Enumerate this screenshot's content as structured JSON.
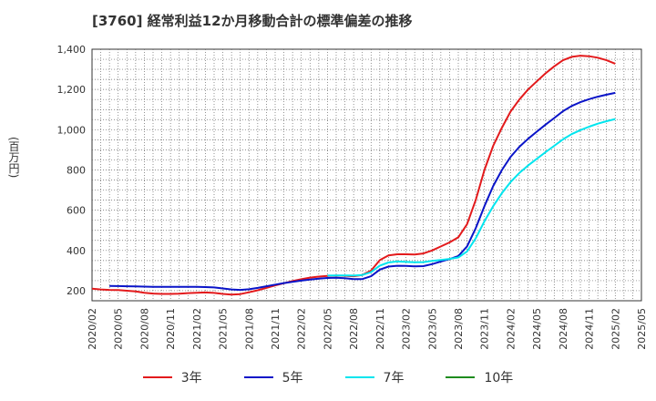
{
  "chart_data": {
    "type": "line",
    "title": "[3760]  経常利益12か月移動合計の標準偏差の推移",
    "ylabel": "(百万円)",
    "xlabel": "",
    "ylim": [
      150,
      1400
    ],
    "yticks": [
      "200",
      "400",
      "600",
      "800",
      "1,000",
      "1,200",
      "1,400"
    ],
    "ytick_values": [
      200,
      400,
      600,
      800,
      1000,
      1200,
      1400
    ],
    "xlim": [
      "2020/02",
      "2025/05"
    ],
    "xticks": [
      "2020/02",
      "2020/05",
      "2020/08",
      "2020/11",
      "2021/02",
      "2021/05",
      "2021/08",
      "2021/11",
      "2022/02",
      "2022/05",
      "2022/08",
      "2022/11",
      "2023/02",
      "2023/05",
      "2023/08",
      "2023/11",
      "2024/02",
      "2024/05",
      "2024/08",
      "2024/11",
      "2025/02",
      "2025/05"
    ],
    "grid": true,
    "legend_position": "bottom",
    "series": [
      {
        "name": "3年",
        "color": "#e31a1c",
        "points": [
          [
            "2020/02",
            210
          ],
          [
            "2020/03",
            206
          ],
          [
            "2020/04",
            204
          ],
          [
            "2020/05",
            203
          ],
          [
            "2020/06",
            200
          ],
          [
            "2020/07",
            196
          ],
          [
            "2020/08",
            190
          ],
          [
            "2020/09",
            186
          ],
          [
            "2020/10",
            184
          ],
          [
            "2020/11",
            184
          ],
          [
            "2020/12",
            185
          ],
          [
            "2021/01",
            188
          ],
          [
            "2021/02",
            190
          ],
          [
            "2021/03",
            191
          ],
          [
            "2021/04",
            189
          ],
          [
            "2021/05",
            184
          ],
          [
            "2021/06",
            181
          ],
          [
            "2021/07",
            183
          ],
          [
            "2021/08",
            192
          ],
          [
            "2021/09",
            202
          ],
          [
            "2021/10",
            214
          ],
          [
            "2021/11",
            226
          ],
          [
            "2021/12",
            237
          ],
          [
            "2022/01",
            248
          ],
          [
            "2022/02",
            257
          ],
          [
            "2022/03",
            265
          ],
          [
            "2022/04",
            270
          ],
          [
            "2022/05",
            273
          ],
          [
            "2022/06",
            275
          ],
          [
            "2022/07",
            274
          ],
          [
            "2022/08",
            272
          ],
          [
            "2022/09",
            278
          ],
          [
            "2022/10",
            300
          ],
          [
            "2022/11",
            352
          ],
          [
            "2022/12",
            375
          ],
          [
            "2023/01",
            381
          ],
          [
            "2023/02",
            381
          ],
          [
            "2023/03",
            380
          ],
          [
            "2023/04",
            385
          ],
          [
            "2023/05",
            400
          ],
          [
            "2023/06",
            420
          ],
          [
            "2023/07",
            440
          ],
          [
            "2023/08",
            465
          ],
          [
            "2023/09",
            530
          ],
          [
            "2023/10",
            650
          ],
          [
            "2023/11",
            800
          ],
          [
            "2023/12",
            920
          ],
          [
            "2024/01",
            1010
          ],
          [
            "2024/02",
            1090
          ],
          [
            "2024/03",
            1150
          ],
          [
            "2024/04",
            1200
          ],
          [
            "2024/05",
            1240
          ],
          [
            "2024/06",
            1280
          ],
          [
            "2024/07",
            1315
          ],
          [
            "2024/08",
            1345
          ],
          [
            "2024/09",
            1362
          ],
          [
            "2024/10",
            1368
          ],
          [
            "2024/11",
            1365
          ],
          [
            "2024/12",
            1358
          ],
          [
            "2025/01",
            1345
          ],
          [
            "2025/02",
            1328
          ]
        ]
      },
      {
        "name": "5年",
        "color": "#0a14c8",
        "points": [
          [
            "2020/04",
            224
          ],
          [
            "2020/05",
            223
          ],
          [
            "2020/06",
            222
          ],
          [
            "2020/07",
            221
          ],
          [
            "2020/08",
            220
          ],
          [
            "2020/09",
            219
          ],
          [
            "2020/10",
            219
          ],
          [
            "2020/11",
            219
          ],
          [
            "2020/12",
            219
          ],
          [
            "2021/01",
            219
          ],
          [
            "2021/02",
            219
          ],
          [
            "2021/03",
            218
          ],
          [
            "2021/04",
            216
          ],
          [
            "2021/05",
            211
          ],
          [
            "2021/06",
            206
          ],
          [
            "2021/07",
            204
          ],
          [
            "2021/08",
            207
          ],
          [
            "2021/09",
            214
          ],
          [
            "2021/10",
            222
          ],
          [
            "2021/11",
            230
          ],
          [
            "2021/12",
            238
          ],
          [
            "2022/01",
            244
          ],
          [
            "2022/02",
            250
          ],
          [
            "2022/03",
            255
          ],
          [
            "2022/04",
            260
          ],
          [
            "2022/05",
            263
          ],
          [
            "2022/06",
            264
          ],
          [
            "2022/07",
            262
          ],
          [
            "2022/08",
            258
          ],
          [
            "2022/09",
            258
          ],
          [
            "2022/10",
            272
          ],
          [
            "2022/11",
            305
          ],
          [
            "2022/12",
            320
          ],
          [
            "2023/01",
            324
          ],
          [
            "2023/02",
            323
          ],
          [
            "2023/03",
            321
          ],
          [
            "2023/04",
            322
          ],
          [
            "2023/05",
            332
          ],
          [
            "2023/06",
            345
          ],
          [
            "2023/07",
            357
          ],
          [
            "2023/08",
            372
          ],
          [
            "2023/09",
            420
          ],
          [
            "2023/10",
            510
          ],
          [
            "2023/11",
            620
          ],
          [
            "2023/12",
            720
          ],
          [
            "2024/01",
            800
          ],
          [
            "2024/02",
            865
          ],
          [
            "2024/03",
            915
          ],
          [
            "2024/04",
            955
          ],
          [
            "2024/05",
            990
          ],
          [
            "2024/06",
            1025
          ],
          [
            "2024/07",
            1058
          ],
          [
            "2024/08",
            1092
          ],
          [
            "2024/09",
            1118
          ],
          [
            "2024/10",
            1137
          ],
          [
            "2024/11",
            1152
          ],
          [
            "2024/12",
            1164
          ],
          [
            "2025/01",
            1174
          ],
          [
            "2025/02",
            1183
          ]
        ]
      },
      {
        "name": "7年",
        "color": "#00e5ee",
        "points": [
          [
            "2022/05",
            275
          ],
          [
            "2022/06",
            276
          ],
          [
            "2022/07",
            276
          ],
          [
            "2022/08",
            275
          ],
          [
            "2022/09",
            278
          ],
          [
            "2022/10",
            292
          ],
          [
            "2022/11",
            325
          ],
          [
            "2022/12",
            340
          ],
          [
            "2023/01",
            345
          ],
          [
            "2023/02",
            343
          ],
          [
            "2023/03",
            341
          ],
          [
            "2023/04",
            342
          ],
          [
            "2023/05",
            348
          ],
          [
            "2023/06",
            353
          ],
          [
            "2023/07",
            358
          ],
          [
            "2023/08",
            365
          ],
          [
            "2023/09",
            395
          ],
          [
            "2023/10",
            460
          ],
          [
            "2023/11",
            545
          ],
          [
            "2023/12",
            620
          ],
          [
            "2024/01",
            685
          ],
          [
            "2024/02",
            740
          ],
          [
            "2024/03",
            785
          ],
          [
            "2024/04",
            822
          ],
          [
            "2024/05",
            855
          ],
          [
            "2024/06",
            888
          ],
          [
            "2024/07",
            920
          ],
          [
            "2024/08",
            952
          ],
          [
            "2024/09",
            978
          ],
          [
            "2024/10",
            998
          ],
          [
            "2024/11",
            1015
          ],
          [
            "2024/12",
            1030
          ],
          [
            "2025/01",
            1042
          ],
          [
            "2025/02",
            1053
          ]
        ]
      },
      {
        "name": "10年",
        "color": "#1e8c1e",
        "points": []
      }
    ]
  }
}
